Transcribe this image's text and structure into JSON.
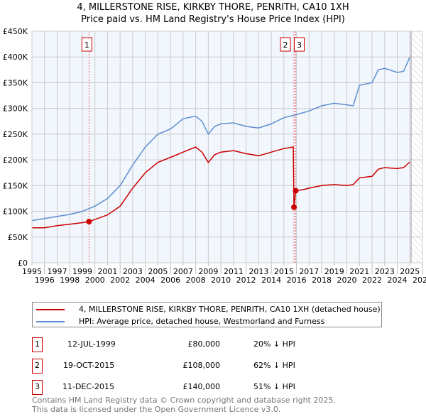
{
  "title_line1": "4, MILLERSTONE RISE, KIRKBY THORE, PENRITH, CA10 1XH",
  "title_line2": "Price paid vs. HM Land Registry's House Price Index (HPI)",
  "chart_data": {
    "type": "line",
    "xlim": [
      1995,
      2026
    ],
    "ylim": [
      0,
      450000
    ],
    "x_ticks": [
      "1995",
      "1996",
      "1997",
      "1998",
      "1999",
      "2000",
      "2001",
      "2002",
      "2003",
      "2004",
      "2005",
      "2006",
      "2007",
      "2008",
      "2009",
      "2010",
      "2011",
      "2012",
      "2013",
      "2014",
      "2015",
      "2016",
      "2017",
      "2018",
      "2019",
      "2020",
      "2021",
      "2022",
      "2023",
      "2024",
      "2025",
      "2026"
    ],
    "y_ticks": [
      {
        "v": 0,
        "label": "£0"
      },
      {
        "v": 50000,
        "label": "£50K"
      },
      {
        "v": 100000,
        "label": "£100K"
      },
      {
        "v": 150000,
        "label": "£150K"
      },
      {
        "v": 200000,
        "label": "£200K"
      },
      {
        "v": 250000,
        "label": "£250K"
      },
      {
        "v": 300000,
        "label": "£300K"
      },
      {
        "v": 350000,
        "label": "£350K"
      },
      {
        "v": 400000,
        "label": "£400K"
      },
      {
        "v": 450000,
        "label": "£450K"
      }
    ],
    "grid": true,
    "forecast_hatch_from": 2025.1,
    "series": [
      {
        "name": "4, MILLERSTONE RISE, KIRKBY THORE, PENRITH, CA10 1XH (detached house)",
        "color": "#cc0000",
        "x": [
          1995,
          1996,
          1997,
          1998,
          1999,
          1999.53,
          2000,
          2001,
          2002,
          2003,
          2004,
          2005,
          2006,
          2007,
          2008,
          2008.5,
          2009,
          2009.5,
          2010,
          2011,
          2012,
          2013,
          2014,
          2015,
          2015.75,
          2015.8,
          2015.94,
          2016.5,
          2017,
          2018,
          2019,
          2020,
          2020.5,
          2021,
          2022,
          2022.5,
          2023,
          2024,
          2024.5,
          2025
        ],
        "y": [
          68000,
          68000,
          72000,
          75000,
          78000,
          80000,
          84000,
          93000,
          110000,
          145000,
          175000,
          195000,
          205000,
          215000,
          225000,
          215000,
          195000,
          210000,
          215000,
          218000,
          212000,
          208000,
          215000,
          222000,
          225000,
          108000,
          140000,
          142000,
          145000,
          150000,
          152000,
          150000,
          152000,
          165000,
          168000,
          182000,
          185000,
          183000,
          185000,
          196000
        ]
      },
      {
        "name": "HPI: Average price, detached house, Westmorland and Furness",
        "color": "#5b8fd0",
        "x": [
          1995,
          1996,
          1997,
          1998,
          1999,
          2000,
          2001,
          2002,
          2003,
          2004,
          2005,
          2006,
          2007,
          2008,
          2008.5,
          2009,
          2009.5,
          2010,
          2011,
          2012,
          2013,
          2014,
          2015,
          2016,
          2017,
          2018,
          2019,
          2020,
          2020.5,
          2021,
          2022,
          2022.5,
          2023,
          2024,
          2024.5,
          2025
        ],
        "y": [
          82000,
          86000,
          90000,
          94000,
          100000,
          110000,
          125000,
          150000,
          190000,
          225000,
          250000,
          260000,
          280000,
          285000,
          275000,
          250000,
          265000,
          270000,
          272000,
          265000,
          262000,
          270000,
          282000,
          288000,
          295000,
          305000,
          310000,
          307000,
          305000,
          345000,
          350000,
          375000,
          378000,
          370000,
          372000,
          400000
        ]
      }
    ],
    "sales": [
      {
        "id": "1",
        "x": 1999.53,
        "date": "12-JUL-1999",
        "price": 80000,
        "price_label": "£80,000",
        "hpi": "20% ↓ HPI"
      },
      {
        "id": "2",
        "x": 2015.8,
        "date": "19-OCT-2015",
        "price": 108000,
        "price_label": "£108,000",
        "hpi": "62% ↓ HPI"
      },
      {
        "id": "3",
        "x": 2015.94,
        "date": "11-DEC-2015",
        "price": 140000,
        "price_label": "£140,000",
        "hpi": "51% ↓ HPI"
      }
    ]
  },
  "footer_line1": "Contains HM Land Registry data © Crown copyright and database right 2025.",
  "footer_line2": "This data is licensed under the Open Government Licence v3.0."
}
